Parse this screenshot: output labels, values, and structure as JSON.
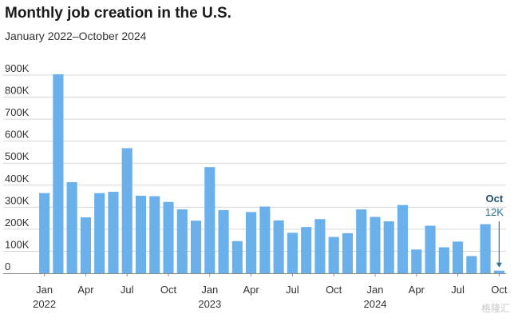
{
  "chart_data": {
    "type": "bar",
    "title": "Monthly job creation in the U.S.",
    "subtitle": "January 2022–October 2024",
    "xlabel": "",
    "ylabel": "",
    "ylim": [
      0,
      900000
    ],
    "yticks": [
      0,
      100000,
      200000,
      300000,
      400000,
      500000,
      600000,
      700000,
      800000,
      900000
    ],
    "ytick_labels": [
      "0",
      "100K",
      "200K",
      "300K",
      "400K",
      "500K",
      "600K",
      "700K",
      "800K",
      "900K"
    ],
    "grid": "horizontal",
    "categories": [
      "Jan 2022",
      "Feb 2022",
      "Mar 2022",
      "Apr 2022",
      "May 2022",
      "Jun 2022",
      "Jul 2022",
      "Aug 2022",
      "Sep 2022",
      "Oct 2022",
      "Nov 2022",
      "Dec 2022",
      "Jan 2023",
      "Feb 2023",
      "Mar 2023",
      "Apr 2023",
      "May 2023",
      "Jun 2023",
      "Jul 2023",
      "Aug 2023",
      "Sep 2023",
      "Oct 2023",
      "Nov 2023",
      "Dec 2023",
      "Jan 2024",
      "Feb 2024",
      "Mar 2024",
      "Apr 2024",
      "May 2024",
      "Jun 2024",
      "Jul 2024",
      "Aug 2024",
      "Sep 2024",
      "Oct 2024"
    ],
    "values": [
      364000,
      904000,
      414000,
      254000,
      364000,
      370000,
      568000,
      352000,
      350000,
      324000,
      290000,
      239000,
      482000,
      287000,
      146000,
      278000,
      303000,
      240000,
      184000,
      210000,
      246000,
      165000,
      182000,
      290000,
      256000,
      236000,
      310000,
      108000,
      216000,
      118000,
      144000,
      78000,
      223000,
      12000
    ],
    "x_tick_labels": [
      {
        "index": 0,
        "label": "Jan",
        "year": "2022"
      },
      {
        "index": 3,
        "label": "Apr",
        "year": ""
      },
      {
        "index": 6,
        "label": "Jul",
        "year": ""
      },
      {
        "index": 9,
        "label": "Oct",
        "year": ""
      },
      {
        "index": 12,
        "label": "Jan",
        "year": "2023"
      },
      {
        "index": 15,
        "label": "Apr",
        "year": ""
      },
      {
        "index": 18,
        "label": "Jul",
        "year": ""
      },
      {
        "index": 21,
        "label": "Oct",
        "year": ""
      },
      {
        "index": 24,
        "label": "Jan",
        "year": "2024"
      },
      {
        "index": 27,
        "label": "Apr",
        "year": ""
      },
      {
        "index": 30,
        "label": "Jul",
        "year": ""
      },
      {
        "index": 33,
        "label": "Oct",
        "year": ""
      }
    ],
    "annotation": {
      "index": 33,
      "label": "Oct",
      "value_label": "12K"
    },
    "colors": {
      "bar": "#6ab0ea",
      "grid": "#d7d7d7",
      "axis": "#8a8a8a",
      "annotation_label": "#1f4e6b",
      "annotation_arrow": "#2c6f98"
    }
  },
  "watermark": "格隆汇"
}
